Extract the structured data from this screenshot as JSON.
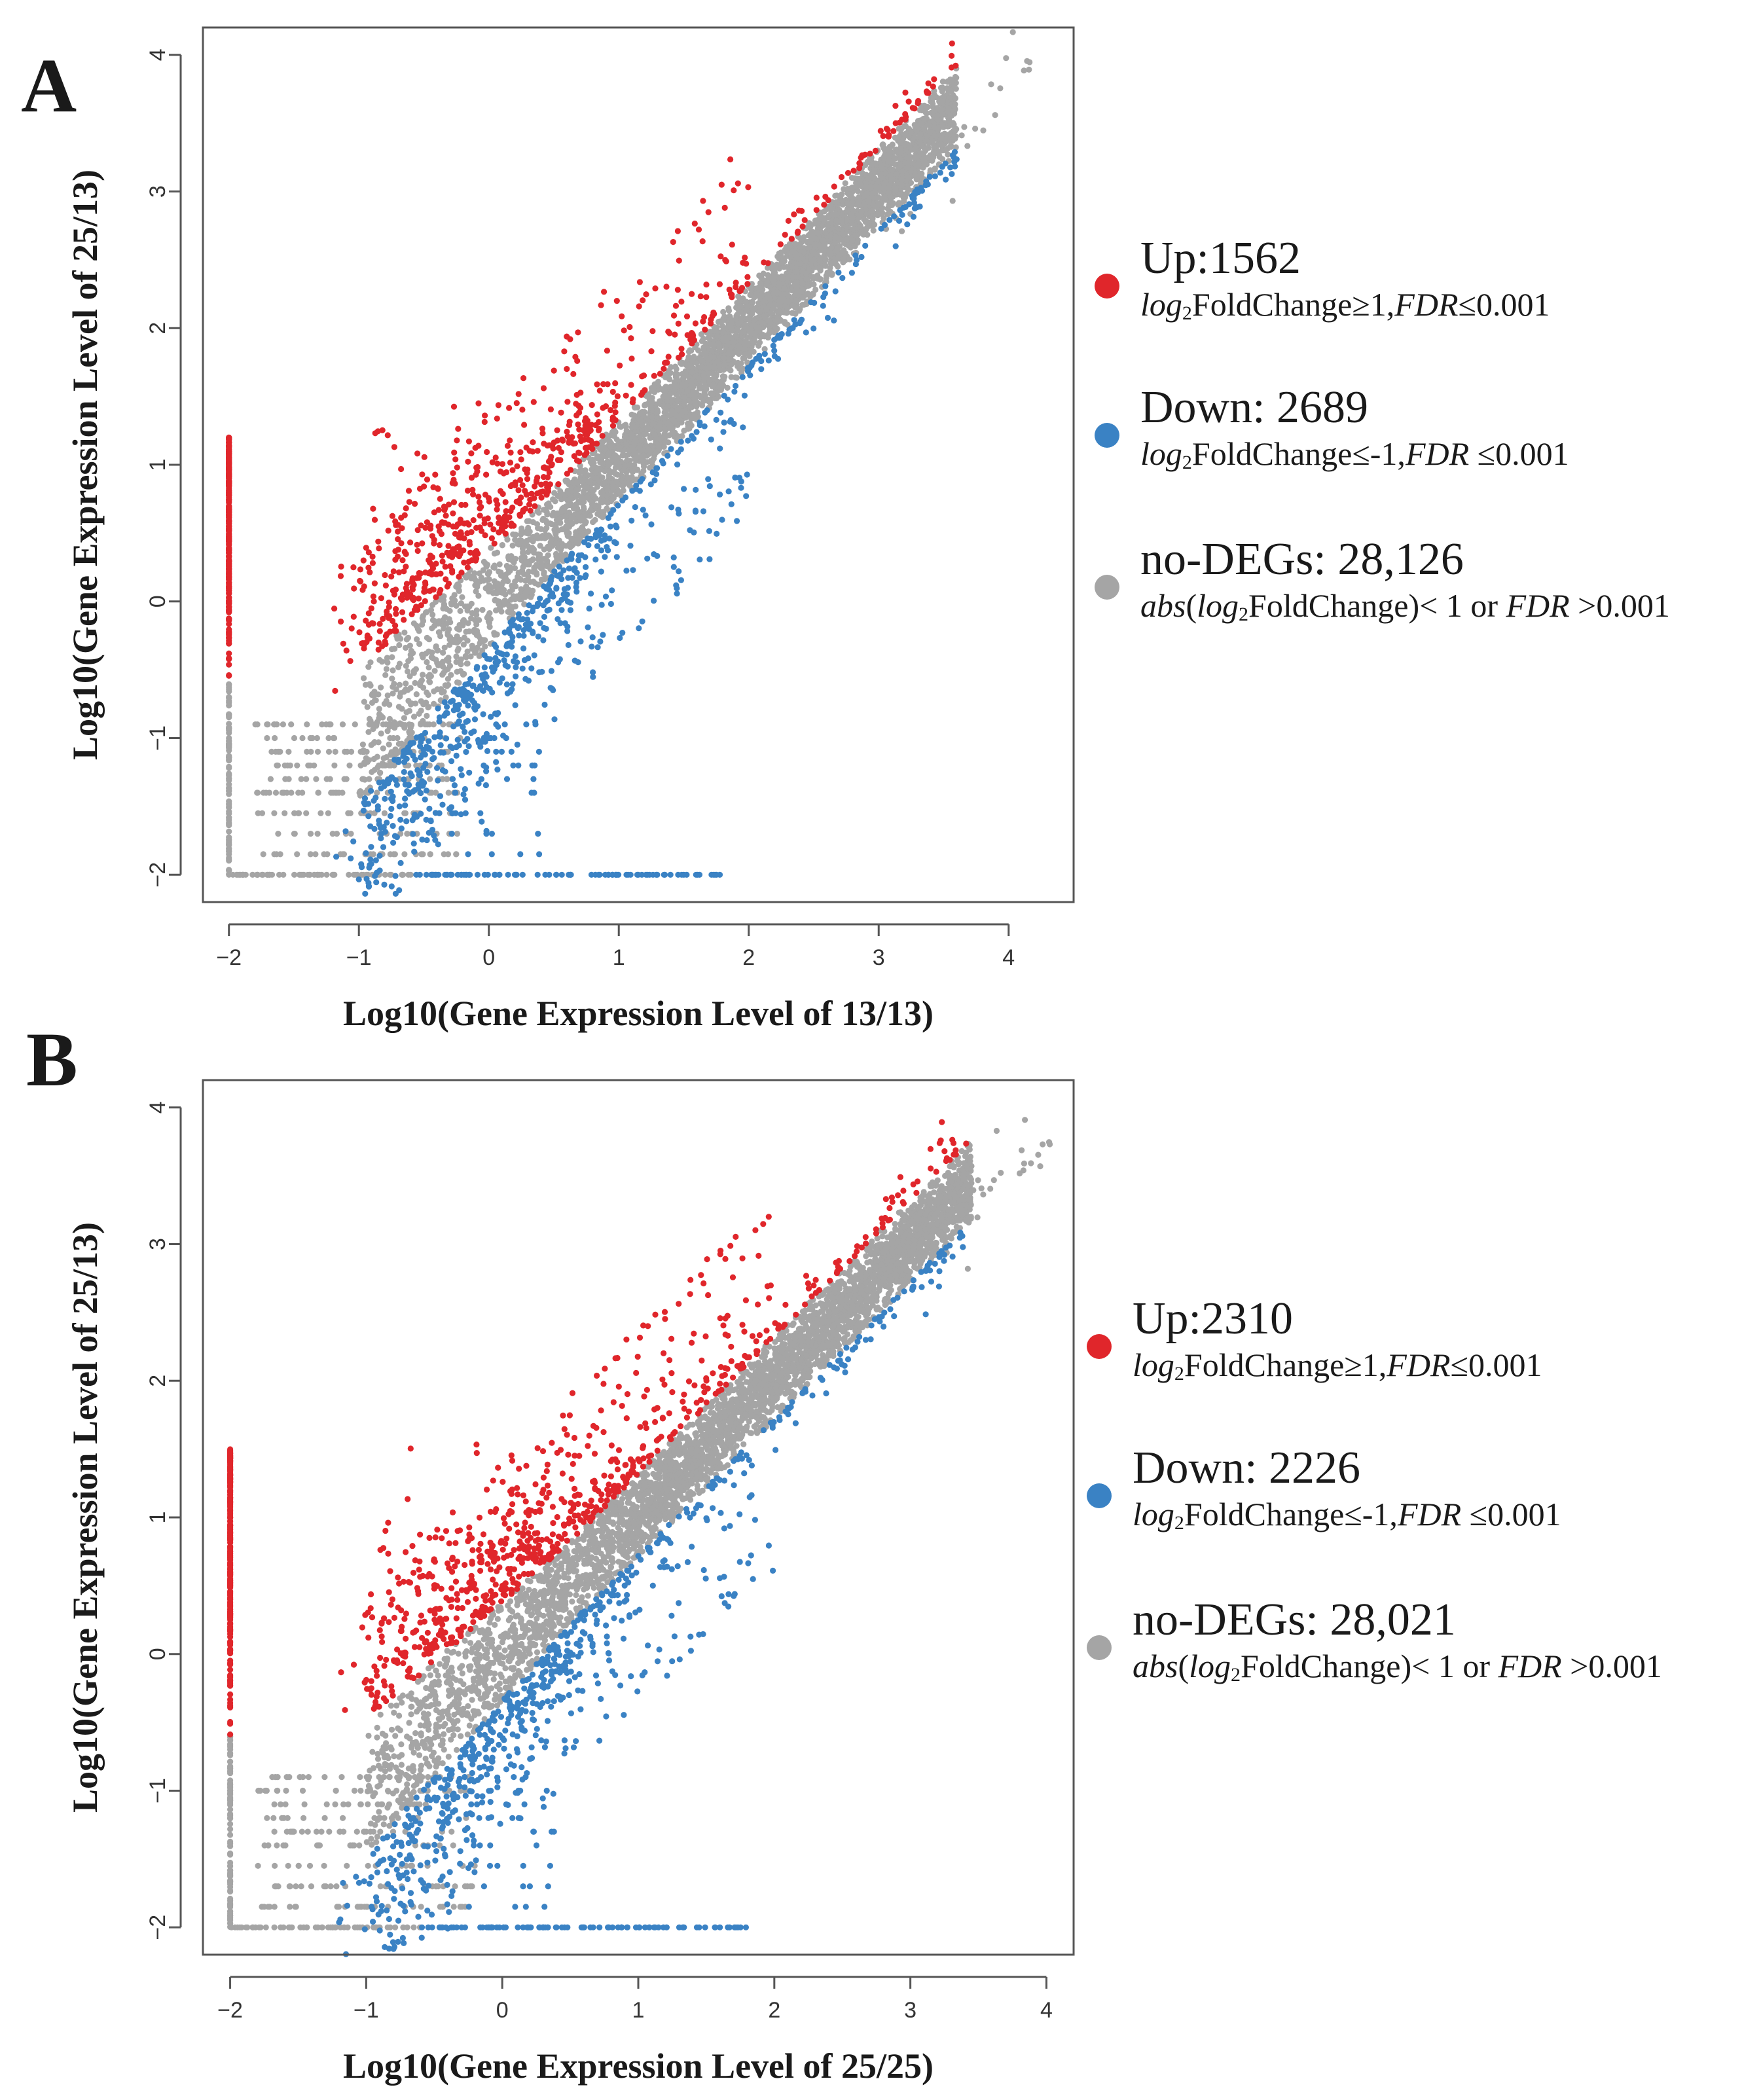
{
  "chart_data": [
    {
      "type": "scatter",
      "panel": "A",
      "xlabel": "Log10(Gene Expression Level of 13/13)",
      "ylabel": "Log10(Gene Expression Level of 25/13)",
      "xlim": [
        -2.2,
        4.5
      ],
      "ylim": [
        -2.2,
        4.2
      ],
      "xticks": [
        -2,
        -1,
        0,
        1,
        2,
        3,
        4
      ],
      "yticks": [
        -2,
        -1,
        0,
        1,
        2,
        3,
        4
      ],
      "series": [
        {
          "name": "Up",
          "count": 1562,
          "color": "#e0262b",
          "value_text": "1562"
        },
        {
          "name": "Down",
          "count": 2689,
          "color": "#3a82c4",
          "value_text": "2689"
        },
        {
          "name": "no-DEGs",
          "count": 28126,
          "color": "#a5a5a5",
          "value_text": "28,126"
        }
      ],
      "approx_max_point": [
        4.2,
        3.85
      ]
    },
    {
      "type": "scatter",
      "panel": "B",
      "xlabel": "Log10(Gene Expression Level of 25/25)",
      "ylabel": "Log10(Gene Expression Level of 25/13)",
      "xlim": [
        -2.2,
        4.2
      ],
      "ylim": [
        -2.2,
        4.2
      ],
      "xticks": [
        -2,
        -1,
        0,
        1,
        2,
        3,
        4
      ],
      "yticks": [
        -2,
        -1,
        0,
        1,
        2,
        3,
        4
      ],
      "series": [
        {
          "name": "Up",
          "count": 2310,
          "color": "#e0262b",
          "value_text": "2310"
        },
        {
          "name": "Down",
          "count": 2226,
          "color": "#3a82c4",
          "value_text": "2226"
        },
        {
          "name": "no-DEGs",
          "count": 28021,
          "color": "#a5a5a5",
          "value_text": "28,021"
        }
      ],
      "approx_max_point": [
        4.05,
        3.95
      ]
    }
  ],
  "panels": [
    {
      "letter": "A",
      "legend": {
        "up_head": "Up:1562",
        "down_head": "Down: 2689",
        "nodeg_head": "no-DEGs: 28,126"
      }
    },
    {
      "letter": "B",
      "legend": {
        "up_head": "Up:2310",
        "down_head": "Down: 2226",
        "nodeg_head": "no-DEGs: 28,021"
      }
    }
  ],
  "legend_text": {
    "log_prefix": "log",
    "log_sub": "2",
    "foldchange": "FoldChange",
    "up_rule": "≥1,",
    "down_rule": "≤-1,",
    "fdr": "FDR",
    "up_fdr": "≤0.001",
    "down_fdr": " ≤0.001",
    "abs": "abs",
    "nodeg_mid": ")< 1 or ",
    "nodeg_fdr": " >0.001"
  },
  "colors": {
    "up": "#e0262b",
    "down": "#3a82c4",
    "nodeg": "#a5a5a5"
  }
}
